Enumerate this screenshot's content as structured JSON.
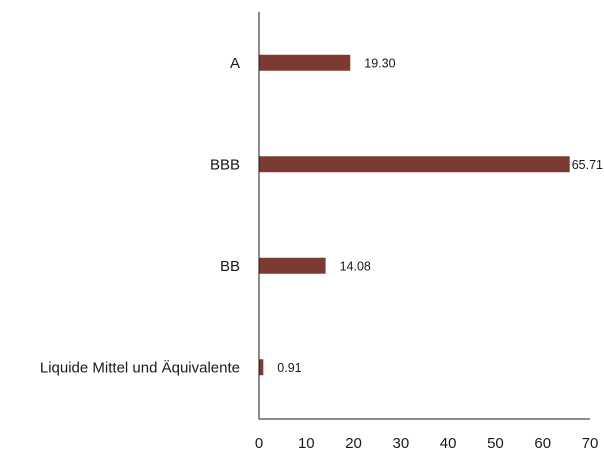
{
  "chart_data": {
    "type": "bar",
    "orientation": "horizontal",
    "categories": [
      "A",
      "BBB",
      "BB",
      "Liquide Mittel und Äquivalente"
    ],
    "values": [
      19.3,
      65.71,
      14.08,
      0.91
    ],
    "value_labels": [
      "19.30",
      "65.71",
      "14.08",
      "0.91"
    ],
    "x_ticks": [
      "0",
      "10",
      "20",
      "30",
      "40",
      "50",
      "60",
      "70"
    ],
    "xlim": [
      0,
      70
    ],
    "grid": false,
    "bar_color": "#7b3b32"
  }
}
